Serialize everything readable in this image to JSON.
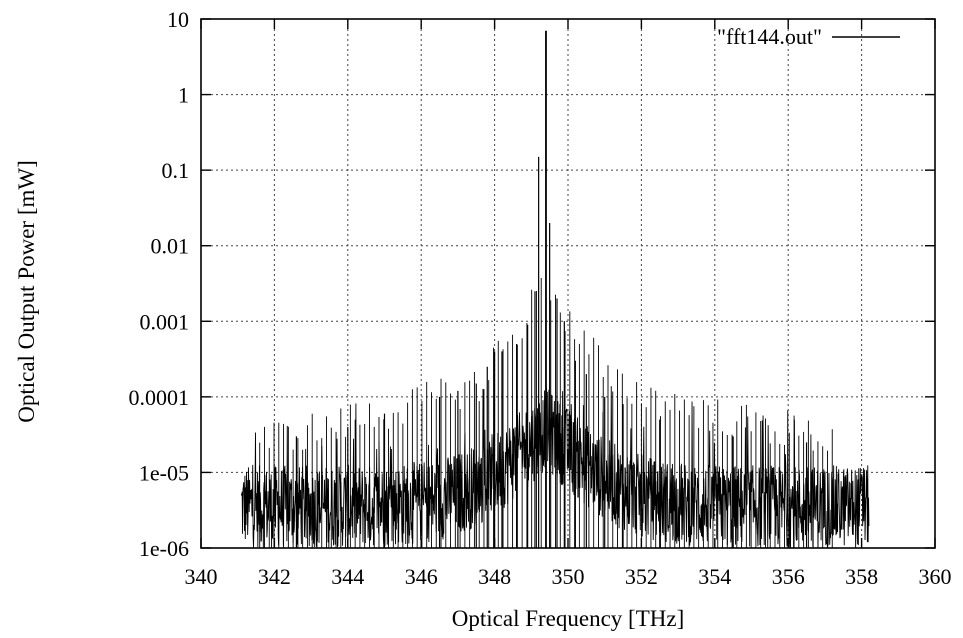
{
  "chart_data": {
    "type": "line",
    "title": "",
    "xlabel": "Optical Frequency [THz]",
    "ylabel": "Optical Output Power [mW]",
    "x_range": [
      340,
      360
    ],
    "x_ticks": [
      "340",
      "342",
      "344",
      "346",
      "348",
      "350",
      "352",
      "354",
      "356",
      "358",
      "360"
    ],
    "y_scale": "log",
    "y_range": [
      1e-06,
      10
    ],
    "y_ticks": [
      "1e-06",
      "1e-05",
      "0.0001",
      "0.001",
      "0.01",
      "0.1",
      "1",
      "10"
    ],
    "grid": true,
    "legend_position": "top-right",
    "series": [
      {
        "name": "\"fft144.out\"",
        "color": "#000000",
        "x_range": [
          341.1,
          358.2
        ],
        "noise_floor_mW": 1e-06,
        "peaks": [
          {
            "x": 349.4,
            "y": 7.0
          },
          {
            "x": 349.2,
            "y": 0.15
          },
          {
            "x": 349.5,
            "y": 0.02
          },
          {
            "x": 349.1,
            "y": 0.0025
          },
          {
            "x": 349.7,
            "y": 0.002
          },
          {
            "x": 348.9,
            "y": 0.0009
          },
          {
            "x": 349.9,
            "y": 0.001
          },
          {
            "x": 348.6,
            "y": 0.0005
          },
          {
            "x": 348.2,
            "y": 0.0004
          },
          {
            "x": 348.0,
            "y": 0.0004
          },
          {
            "x": 347.8,
            "y": 0.00025
          },
          {
            "x": 347.5,
            "y": 0.00015
          },
          {
            "x": 347.0,
            "y": 0.00012
          },
          {
            "x": 346.5,
            "y": 0.0001
          },
          {
            "x": 350.2,
            "y": 0.0003
          },
          {
            "x": 350.5,
            "y": 0.0002
          },
          {
            "x": 351.0,
            "y": 0.0001
          },
          {
            "x": 351.5,
            "y": 8e-05
          },
          {
            "x": 345.0,
            "y": 6e-05
          },
          {
            "x": 344.0,
            "y": 4e-05
          },
          {
            "x": 342.6,
            "y": 3e-05
          },
          {
            "x": 352.5,
            "y": 5e-05
          },
          {
            "x": 354.5,
            "y": 3e-05
          },
          {
            "x": 356.5,
            "y": 2.5e-05
          }
        ]
      }
    ]
  }
}
